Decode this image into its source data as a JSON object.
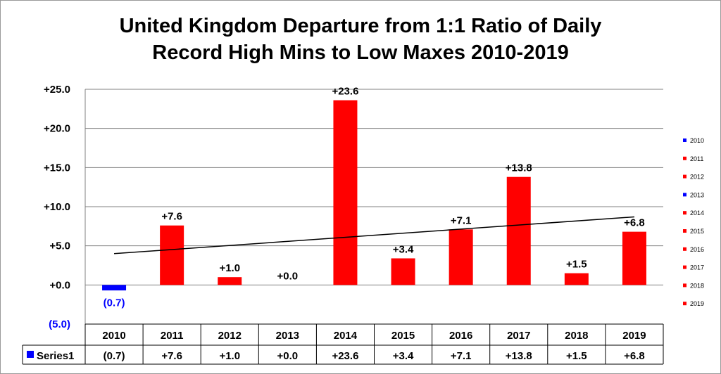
{
  "title_line1": "United Kingdom Departure from 1:1 Ratio of Daily",
  "title_line2": "Record High Mins to Low Maxes 2010-2019",
  "colors": {
    "positive": "#ff0000",
    "negative": "#0000ff",
    "neg_text": "#0000ff",
    "trend": "#000000",
    "grid": "#808080"
  },
  "chart_data": {
    "type": "bar",
    "title": "United Kingdom Departure from 1:1 Ratio of Daily Record High Mins to Low Maxes 2010-2019",
    "categories": [
      "2010",
      "2011",
      "2012",
      "2013",
      "2014",
      "2015",
      "2016",
      "2017",
      "2018",
      "2019"
    ],
    "series": [
      {
        "name": "Series1",
        "values": [
          -0.7,
          7.6,
          1.0,
          0.0,
          23.6,
          3.4,
          7.1,
          13.8,
          1.5,
          6.8
        ]
      }
    ],
    "value_labels": [
      "(0.7)",
      "+7.6",
      "+1.0",
      "+0.0",
      "+23.6",
      "+3.4",
      "+7.1",
      "+13.8",
      "+1.5",
      "+6.8"
    ],
    "y_ticks": [
      -5,
      0,
      5,
      10,
      15,
      20,
      25
    ],
    "y_tick_labels": [
      "(5.0)",
      "+0.0",
      "+5.0",
      "+10.0",
      "+15.0",
      "+20.0",
      "+25.0"
    ],
    "ylim": [
      -5,
      25
    ],
    "trendline": {
      "type": "linear",
      "start": 4.0,
      "end": 8.7
    },
    "grid": true,
    "legend_position": "right",
    "legend_entries": [
      "2010",
      "2011",
      "2012",
      "2013",
      "2014",
      "2015",
      "2016",
      "2017",
      "2018",
      "2019"
    ],
    "legend_colors": [
      "#0000ff",
      "#ff0000",
      "#ff0000",
      "#0000ff",
      "#ff0000",
      "#ff0000",
      "#ff0000",
      "#ff0000",
      "#ff0000",
      "#ff0000"
    ],
    "data_table": {
      "row_label": "Series1",
      "values": [
        "(0.7)",
        "+7.6",
        "+1.0",
        "+0.0",
        "+23.6",
        "+3.4",
        "+7.1",
        "+13.8",
        "+1.5",
        "+6.8"
      ]
    }
  }
}
